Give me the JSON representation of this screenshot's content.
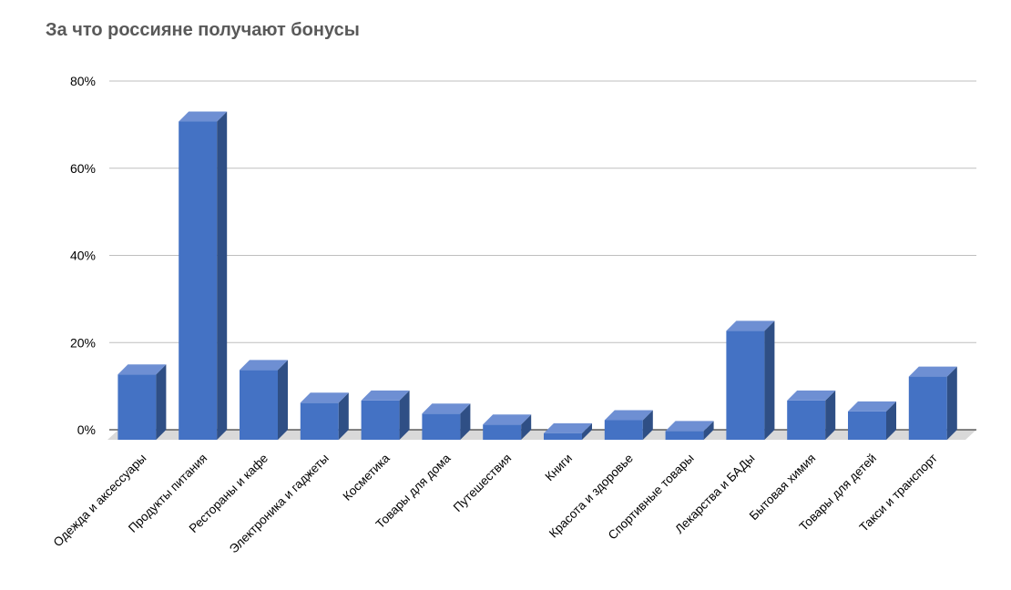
{
  "chart_data": {
    "type": "bar",
    "title": "За что россияне получают бонусы",
    "categories": [
      "Одежда и аксессуары",
      "Продукты питания",
      "Рестораны и кафе",
      "Электроника и гаджеты",
      "Косметика",
      "Товары для дома",
      "Путешествия",
      "Книги",
      "Красота и здоровье",
      "Спортивные товары",
      "Лекарства и БАДы",
      "Бытовая химия",
      "Товары для детей",
      "Такси и транспорт"
    ],
    "values": [
      15,
      73,
      16,
      8.5,
      9,
      6,
      3.5,
      1.5,
      4.5,
      2,
      25,
      9,
      6.5,
      14.5
    ],
    "ylim": [
      0,
      80
    ],
    "yticks": [
      0,
      20,
      40,
      60,
      80
    ],
    "ytick_labels": [
      "0%",
      "20%",
      "40%",
      "60%",
      "80%"
    ],
    "grid": true,
    "bar_color": "#4472C4",
    "bar_top_color": "#6E8FD3",
    "bar_side_color": "#2F4F85",
    "floor_color": "#D9D9D9"
  }
}
